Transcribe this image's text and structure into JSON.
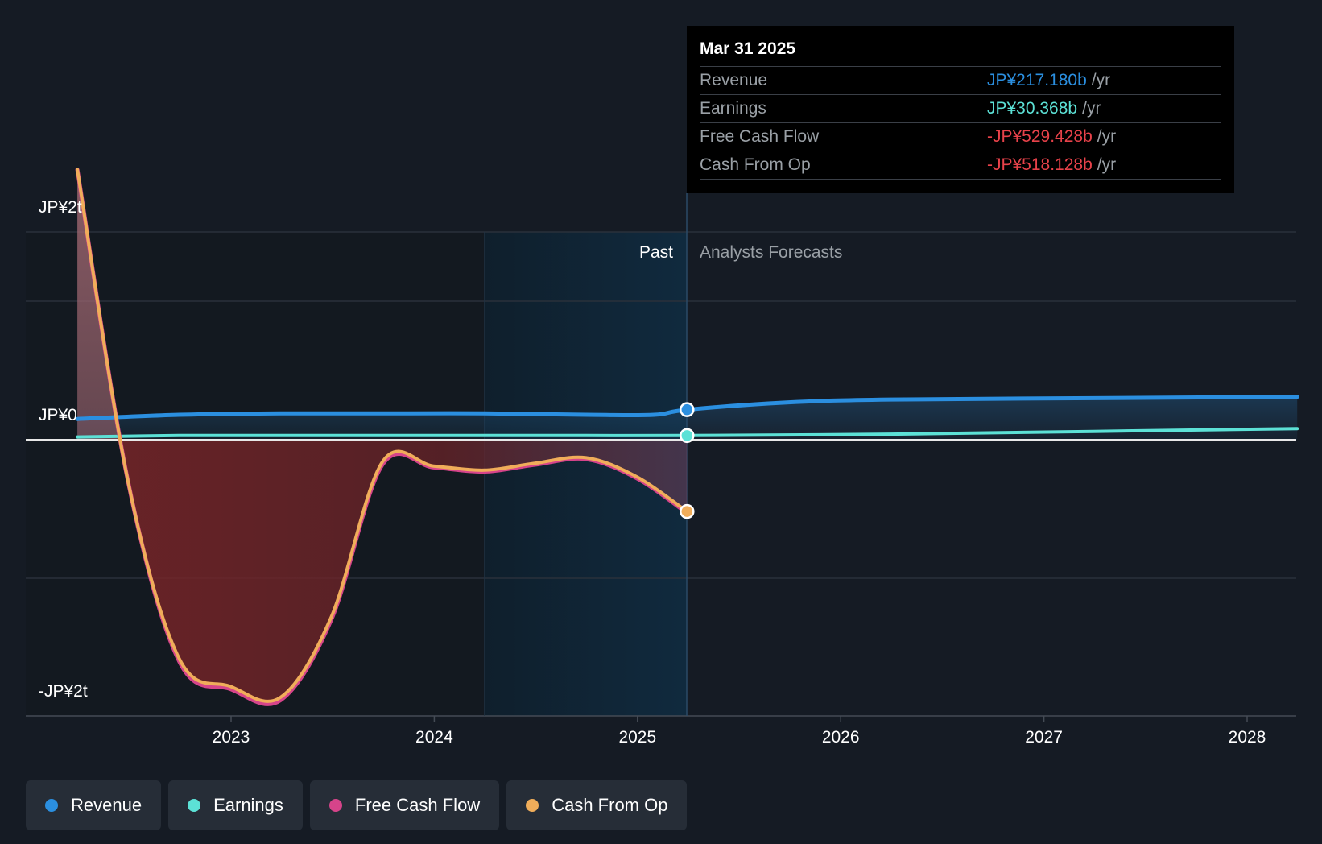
{
  "chart_data": {
    "type": "line",
    "x_axis": {
      "tick_labels": [
        "2023",
        "2024",
        "2025",
        "2026",
        "2027",
        "2028"
      ]
    },
    "y_axis": {
      "tick_labels": [
        "JP¥2t",
        "JP¥0",
        "-JP¥2t"
      ],
      "ylim": [
        -2,
        2
      ],
      "units": "JP¥ trillion"
    },
    "regions": {
      "past_label": "Past",
      "forecast_label": "Analysts Forecasts"
    },
    "series": [
      {
        "name": "Revenue",
        "color": "#2b8fe0",
        "x": [
          "2022-03-31",
          "2022-09-30",
          "2023-03-31",
          "2023-09-30",
          "2024-03-31",
          "2024-09-30",
          "2025-01-31",
          "2025-03-31",
          "2025-09-30",
          "2026-03-31",
          "2027-03-31",
          "2028-03-31"
        ],
        "values": [
          0.15,
          0.18,
          0.19,
          0.19,
          0.19,
          0.18,
          0.18,
          0.217,
          0.27,
          0.29,
          0.3,
          0.31
        ]
      },
      {
        "name": "Earnings",
        "color": "#5ce1d6",
        "x": [
          "2022-03-31",
          "2022-09-30",
          "2023-03-31",
          "2023-09-30",
          "2024-03-31",
          "2024-09-30",
          "2025-03-31",
          "2026-03-31",
          "2027-03-31",
          "2028-03-31"
        ],
        "values": [
          0.02,
          0.03,
          0.03,
          0.03,
          0.03,
          0.03,
          0.03,
          0.04,
          0.06,
          0.08
        ]
      },
      {
        "name": "Free Cash Flow",
        "color": "#d6448a",
        "x": [
          "2022-03-31",
          "2022-06-30",
          "2022-09-30",
          "2022-12-31",
          "2023-03-31",
          "2023-06-30",
          "2023-09-30",
          "2023-12-31",
          "2024-03-31",
          "2024-06-30",
          "2024-09-30",
          "2024-12-31",
          "2025-03-31"
        ],
        "values": [
          1.95,
          -0.3,
          -1.6,
          -1.8,
          -1.88,
          -1.3,
          -0.18,
          -0.2,
          -0.23,
          -0.18,
          -0.14,
          -0.28,
          -0.529
        ]
      },
      {
        "name": "Cash From Op",
        "color": "#f0ad5a",
        "x": [
          "2022-03-31",
          "2022-06-30",
          "2022-09-30",
          "2022-12-31",
          "2023-03-31",
          "2023-06-30",
          "2023-09-30",
          "2023-12-31",
          "2024-03-31",
          "2024-06-30",
          "2024-09-30",
          "2024-12-31",
          "2025-03-31"
        ],
        "values": [
          1.95,
          -0.3,
          -1.58,
          -1.78,
          -1.86,
          -1.28,
          -0.16,
          -0.19,
          -0.22,
          -0.17,
          -0.13,
          -0.27,
          -0.518
        ]
      }
    ]
  },
  "tooltip": {
    "date": "Mar 31 2025",
    "rows": [
      {
        "label": "Revenue",
        "value": "JP¥217.180b",
        "unit": "/yr",
        "color": "#2b8fe0"
      },
      {
        "label": "Earnings",
        "value": "JP¥30.368b",
        "unit": "/yr",
        "color": "#5ce1d6"
      },
      {
        "label": "Free Cash Flow",
        "value": "-JP¥529.428b",
        "unit": "/yr",
        "color": "#e8424a"
      },
      {
        "label": "Cash From Op",
        "value": "-JP¥518.128b",
        "unit": "/yr",
        "color": "#e8424a"
      }
    ]
  },
  "legend": [
    {
      "label": "Revenue",
      "color": "#2b8fe0"
    },
    {
      "label": "Earnings",
      "color": "#5ce1d6"
    },
    {
      "label": "Free Cash Flow",
      "color": "#d6448a"
    },
    {
      "label": "Cash From Op",
      "color": "#f0ad5a"
    }
  ]
}
